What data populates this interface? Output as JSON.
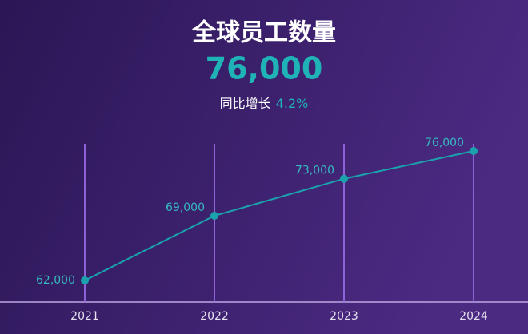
{
  "chart_data": {
    "type": "line",
    "title": "全球员工数量",
    "headline": "76,000",
    "growth_label": "同比增长",
    "growth_value": "4.2%",
    "categories": [
      "2021",
      "2022",
      "2023",
      "2024"
    ],
    "values": [
      62000,
      69000,
      73000,
      76000
    ],
    "value_labels": [
      "62,000",
      "69,000",
      "73,000",
      "76,000"
    ],
    "color": "#1aa3ad"
  }
}
